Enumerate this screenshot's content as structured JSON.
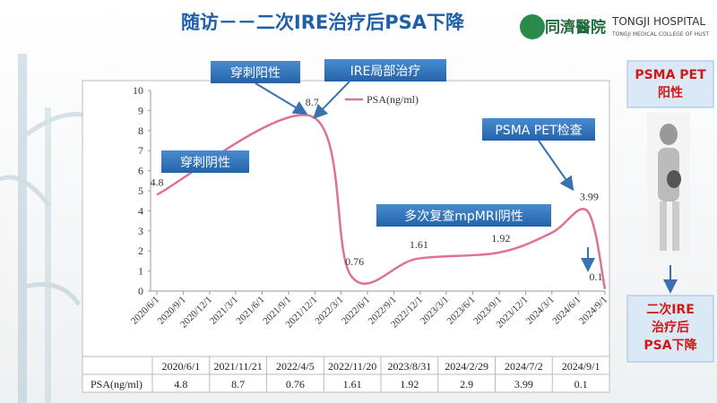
{
  "header": {
    "title": "随访－－二次IRE治疗后PSA下降",
    "logo_cn": "同濟醫院",
    "logo_en": "TONGJI HOSPITAL",
    "logo_sub": "TONGJI MEDICAL COLLEGE OF HUST"
  },
  "chart_data": {
    "type": "line",
    "x": [
      "2020/6/1",
      "2021/11/21",
      "2022/4/5",
      "2022/11/20",
      "2023/8/31",
      "2024/2/29",
      "2024/7/2",
      "2024/9/1"
    ],
    "series": [
      {
        "name": "PSA(ng/ml)",
        "color": "#e0709a",
        "values": [
          4.8,
          8.7,
          0.76,
          1.61,
          1.92,
          2.9,
          3.99,
          0.1
        ],
        "value_labels": [
          "4.8",
          "8.7",
          "0.76",
          "1.61",
          "1.92",
          null,
          "3.99",
          "0.1"
        ]
      }
    ],
    "xlim": [
      "2020/6/1",
      "2024/9/1"
    ],
    "xticks": [
      "2020/6/1",
      "2020/9/1",
      "2020/12/1",
      "2021/3/1",
      "2021/6/1",
      "2021/9/1",
      "2021/12/1",
      "2022/3/1",
      "2022/6/1",
      "2022/9/1",
      "2022/12/1",
      "2023/3/1",
      "2023/6/1",
      "2023/9/1",
      "2023/12/1",
      "2024/3/1",
      "2024/6/1",
      "2024/9/1"
    ],
    "ylim": [
      0,
      10
    ],
    "yticks": [
      0,
      1,
      2,
      3,
      4,
      5,
      6,
      7,
      8,
      9,
      10
    ],
    "annotations": [
      "穿刺阳性",
      "IRE局部治疗",
      "穿刺阴性",
      "PSMA PET检查",
      "多次复查mpMRI阴性"
    ]
  },
  "side": {
    "top": [
      "PSMA PET",
      "阳性"
    ],
    "bottom": [
      "二次IRE",
      "治疗后",
      "PSA下降"
    ]
  }
}
